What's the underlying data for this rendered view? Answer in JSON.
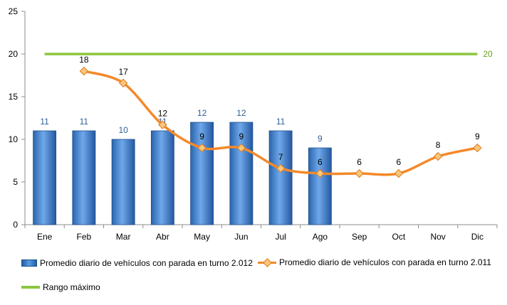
{
  "chart_data": {
    "type": "bar",
    "categories": [
      "Ene",
      "Feb",
      "Mar",
      "Abr",
      "May",
      "Jun",
      "Jul",
      "Ago",
      "Sep",
      "Oct",
      "Nov",
      "Dic"
    ],
    "ylim": [
      0,
      25
    ],
    "yticks": [
      0,
      5,
      10,
      15,
      20,
      25
    ],
    "grid": false,
    "legend_position": "bottom",
    "series": [
      {
        "name": "Promedio diario de vehículos con parada en turno 2.012",
        "type": "bar",
        "color": "#4a86d4",
        "label_color": "#2e5f99",
        "values": [
          11,
          11,
          10,
          11,
          12,
          12,
          11,
          9,
          null,
          null,
          null,
          null
        ]
      },
      {
        "name": "Promedio diario de vehículos con parada en turno 2.011",
        "type": "line",
        "color": "#f4892a",
        "marker_color": "#f9c77a",
        "values": [
          null,
          18,
          16.6,
          11.7,
          9,
          9,
          6.6,
          6,
          6,
          6,
          8,
          9
        ],
        "labels": [
          null,
          "18",
          "17",
          "12",
          "9",
          "9",
          "7",
          "6",
          "6",
          "6",
          "8",
          "9"
        ]
      },
      {
        "name": "Rango máximo",
        "type": "line",
        "color": "#8cc63f",
        "label_color": "#6aa121",
        "values": [
          20,
          20,
          20,
          20,
          20,
          20,
          20,
          20,
          20,
          20,
          20,
          20
        ],
        "end_label": "20"
      }
    ]
  }
}
